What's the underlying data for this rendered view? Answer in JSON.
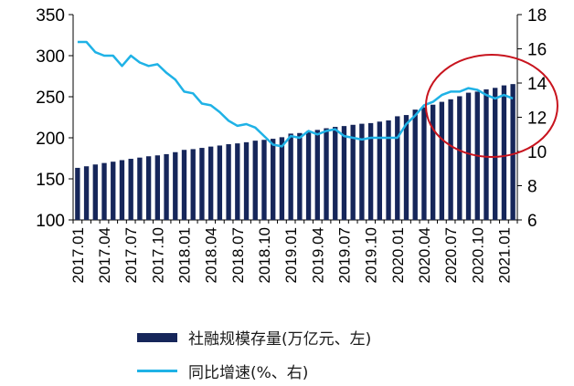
{
  "chart_data": {
    "type": "bar+line",
    "x": [
      "2017.01",
      "2017.02",
      "2017.03",
      "2017.04",
      "2017.05",
      "2017.06",
      "2017.07",
      "2017.08",
      "2017.09",
      "2017.10",
      "2017.11",
      "2017.12",
      "2018.01",
      "2018.02",
      "2018.03",
      "2018.04",
      "2018.05",
      "2018.06",
      "2018.07",
      "2018.08",
      "2018.09",
      "2018.10",
      "2018.11",
      "2018.12",
      "2019.01",
      "2019.02",
      "2019.03",
      "2019.04",
      "2019.05",
      "2019.06",
      "2019.07",
      "2019.08",
      "2019.09",
      "2019.10",
      "2019.11",
      "2019.12",
      "2020.01",
      "2020.02",
      "2020.03",
      "2020.04",
      "2020.05",
      "2020.06",
      "2020.07",
      "2020.08",
      "2020.09",
      "2020.10",
      "2020.11",
      "2020.12",
      "2021.01",
      "2021.02"
    ],
    "tick_labels": [
      "2017.01",
      "2017.04",
      "2017.07",
      "2017.10",
      "2018.01",
      "2018.04",
      "2018.07",
      "2018.10",
      "2019.01",
      "2019.04",
      "2019.07",
      "2019.10",
      "2020.01",
      "2020.04",
      "2020.07",
      "2020.10",
      "2021.01"
    ],
    "series": [
      {
        "name": "社融规模存量(万亿元、左)",
        "type": "bar",
        "axis": "left",
        "color": "#16265a",
        "values": [
          163.4,
          165.3,
          167.5,
          169.3,
          170.9,
          172.8,
          174.4,
          175.9,
          177.5,
          178.6,
          180.1,
          182.5,
          185.3,
          186.2,
          187.7,
          189.3,
          190.6,
          192.2,
          193.2,
          194.6,
          196.5,
          197.5,
          198.8,
          200.7,
          205.1,
          205.8,
          208.3,
          209.6,
          211.6,
          213.3,
          214.3,
          215.8,
          217.1,
          217.9,
          219.7,
          221.2,
          226.2,
          227.7,
          234.3,
          237.1,
          240.3,
          243.8,
          246.9,
          250.6,
          254.9,
          256.2,
          259.0,
          260.8,
          263.8,
          265.4
        ]
      },
      {
        "name": "同比增速(%、右)",
        "type": "line",
        "axis": "right",
        "color": "#1fb2e6",
        "values": [
          16.4,
          16.4,
          15.8,
          15.6,
          15.6,
          15.0,
          15.6,
          15.2,
          15.0,
          15.1,
          14.6,
          14.2,
          13.5,
          13.4,
          12.8,
          12.7,
          12.3,
          11.8,
          11.5,
          11.6,
          11.4,
          10.9,
          10.4,
          10.3,
          10.9,
          10.8,
          11.2,
          11.0,
          11.2,
          11.3,
          10.9,
          10.8,
          10.7,
          10.8,
          10.8,
          10.8,
          10.8,
          11.6,
          12.1,
          12.7,
          12.9,
          13.3,
          13.5,
          13.5,
          13.7,
          13.6,
          13.3,
          13.1,
          13.3,
          13.1
        ]
      }
    ],
    "ylim_left": [
      100,
      350
    ],
    "yticks_left": [
      100,
      150,
      200,
      250,
      300,
      350
    ],
    "ylim_right": [
      6,
      18
    ],
    "yticks_right": [
      6,
      8,
      10,
      12,
      14,
      16,
      18
    ],
    "annotation": {
      "shape": "ellipse",
      "color": "#c8141e",
      "around": "2020.08–2021.02"
    },
    "legend_position": "bottom"
  },
  "legend": {
    "bar_label": "社融规模存量(万亿元、左)",
    "line_label": "同比增速(%、右)"
  }
}
